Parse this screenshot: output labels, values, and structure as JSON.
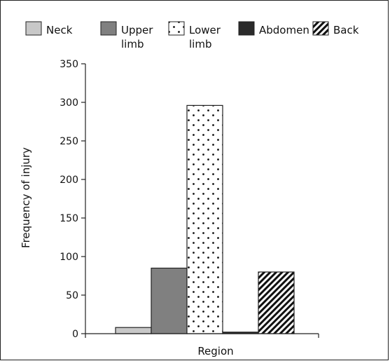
{
  "chart_data": {
    "type": "bar",
    "title": "",
    "xlabel": "Region",
    "ylabel": "Frequency of injury",
    "ylim": [
      0,
      350
    ],
    "yticks": [
      0,
      50,
      100,
      150,
      200,
      250,
      300,
      350
    ],
    "legend_position": "top",
    "grid": false,
    "series": [
      {
        "name": "Neck",
        "legend_lines": [
          "Neck"
        ],
        "value": 8,
        "fill": "#c8c8c8",
        "pattern": "solid"
      },
      {
        "name": "Upper limb",
        "legend_lines": [
          "Upper",
          "limb"
        ],
        "value": 85,
        "fill": "#808080",
        "pattern": "solid"
      },
      {
        "name": "Lower limb",
        "legend_lines": [
          "Lower",
          "limb"
        ],
        "value": 296,
        "fill": "#ffffff",
        "pattern": "dots"
      },
      {
        "name": "Abdomen",
        "legend_lines": [
          "Abdomen"
        ],
        "value": 2,
        "fill": "#2b2b2b",
        "pattern": "solid"
      },
      {
        "name": "Back",
        "legend_lines": [
          "Back"
        ],
        "value": 80,
        "fill": "#ffffff",
        "pattern": "hatch"
      }
    ]
  }
}
